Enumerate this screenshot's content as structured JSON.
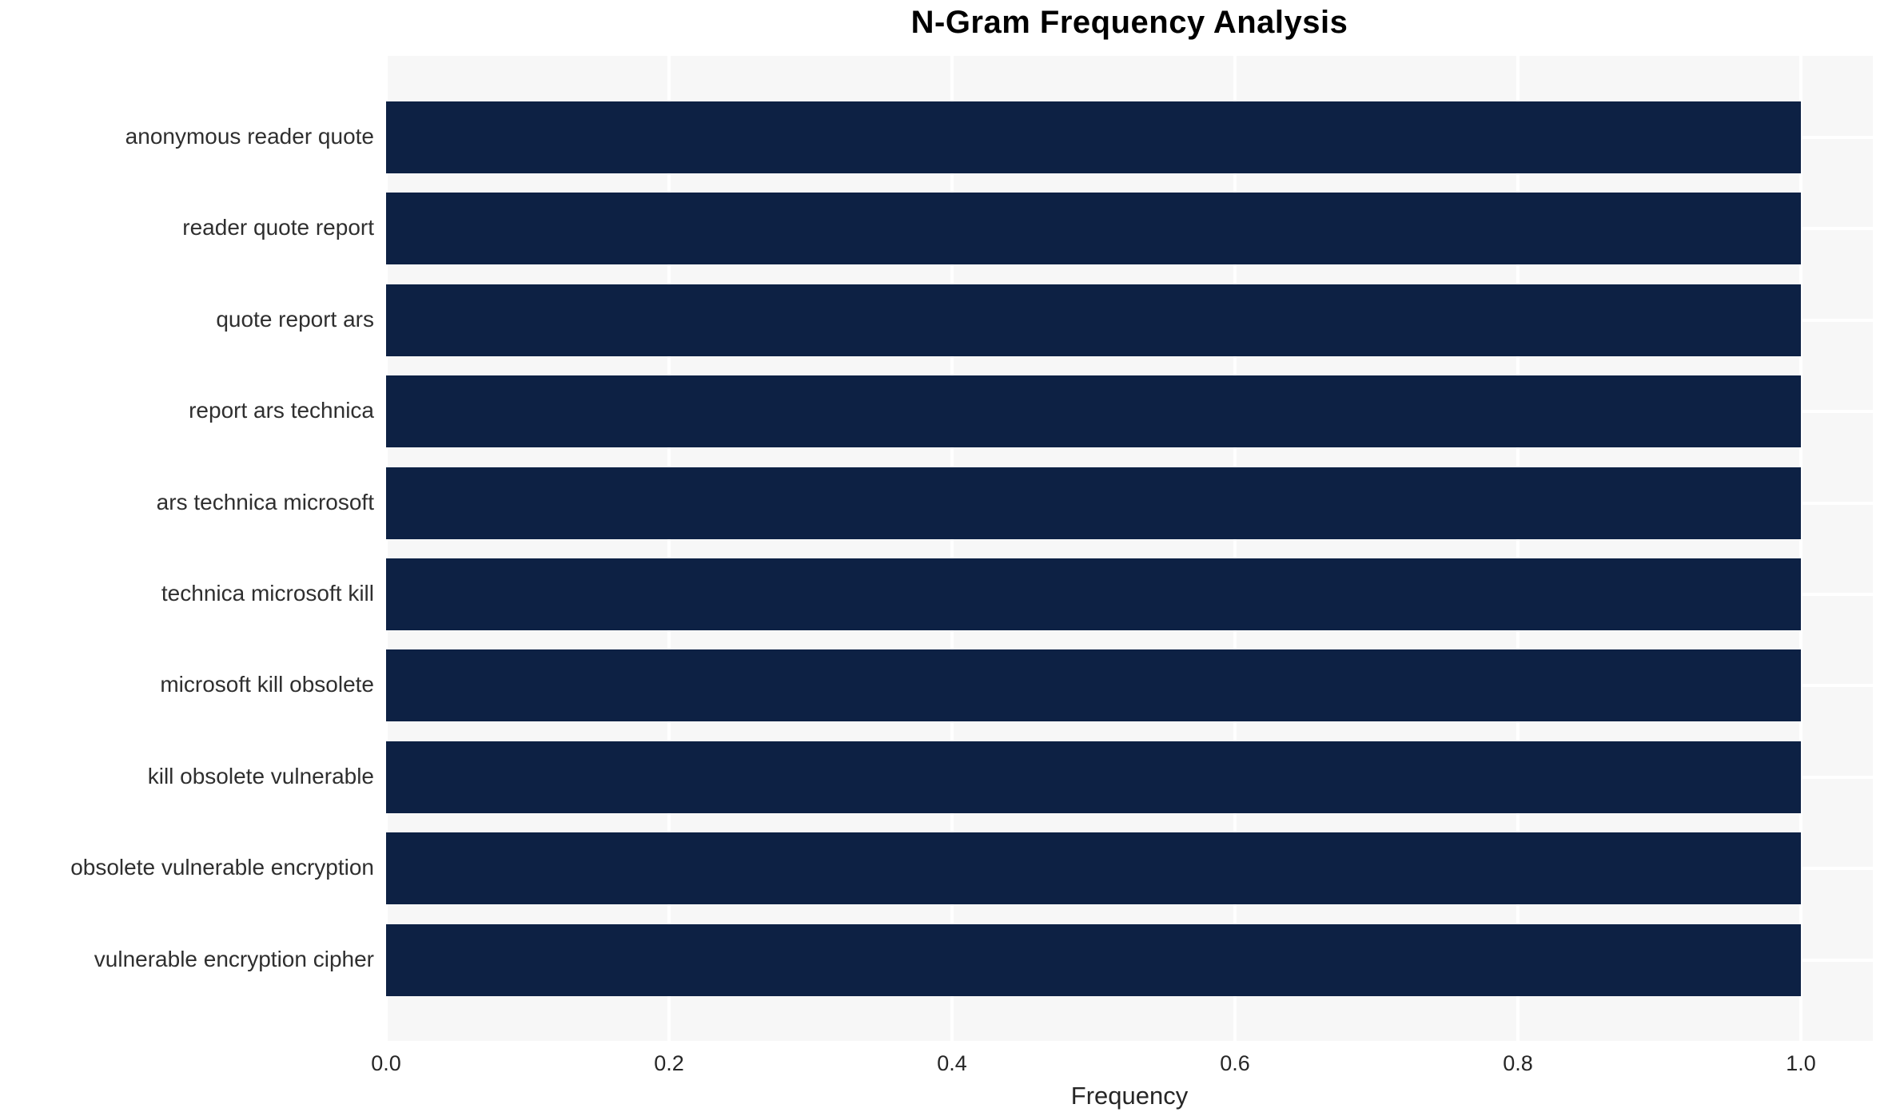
{
  "figure": {
    "title": "N-Gram Frequency Analysis",
    "xlabel": "Frequency"
  },
  "chart_data": {
    "type": "bar",
    "orientation": "horizontal",
    "title": "N-Gram Frequency Analysis",
    "xlabel": "Frequency",
    "ylabel": "",
    "categories": [
      "anonymous reader quote",
      "reader quote report",
      "quote report ars",
      "report ars technica",
      "ars technica microsoft",
      "technica microsoft kill",
      "microsoft kill obsolete",
      "kill obsolete vulnerable",
      "obsolete vulnerable encryption",
      "vulnerable encryption cipher"
    ],
    "values": [
      1.0,
      1.0,
      1.0,
      1.0,
      1.0,
      1.0,
      1.0,
      1.0,
      1.0,
      1.0
    ],
    "xlim": [
      0.0,
      1.05
    ],
    "x_ticks": [
      "0.0",
      "0.2",
      "0.4",
      "0.6",
      "0.8",
      "1.0"
    ],
    "x_tick_values": [
      0.0,
      0.2,
      0.4,
      0.6,
      0.8,
      1.0
    ],
    "grid": true,
    "legend": false,
    "colors": {
      "bar": "#0d2144",
      "plot_background": "#f7f7f7",
      "gridline": "#ffffff",
      "tick_text": "#262626",
      "title_text": "#000000"
    }
  }
}
